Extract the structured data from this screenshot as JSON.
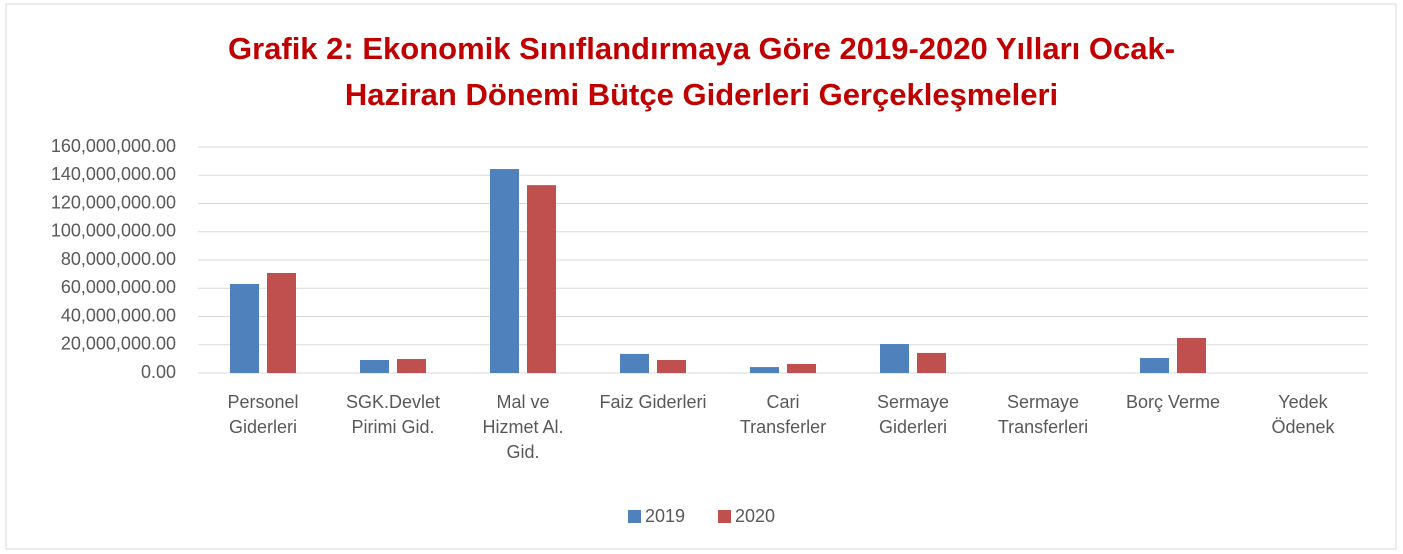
{
  "chart_data": {
    "type": "bar",
    "title": "Grafik 2: Ekonomik Sınıflandırmaya Göre 2019-2020 Yılları Ocak-\nHaziran Dönemi Bütçe Giderleri Gerçekleşmeleri",
    "categories": [
      "Personel\nGiderleri",
      "SGK.Devlet\nPirimi Gid.",
      "Mal ve\nHizmet Al.\nGid.",
      "Faiz Giderleri",
      "Cari\nTransferler",
      "Sermaye\nGiderleri",
      "Sermaye\nTransferleri",
      "Borç Verme",
      "Yedek\nÖdenek"
    ],
    "series": [
      {
        "name": "2019",
        "color": "#4f81bd",
        "values": [
          63000000,
          9200000,
          144400000,
          13500000,
          4200000,
          20500000,
          0,
          10600000,
          0
        ]
      },
      {
        "name": "2020",
        "color": "#c0504d",
        "values": [
          70800000,
          9900000,
          133000000,
          9200000,
          6400000,
          14200000,
          0,
          24800000,
          0
        ]
      }
    ],
    "ylim": [
      0,
      160000000
    ],
    "yticks": [
      {
        "value": 0,
        "label": "0.00"
      },
      {
        "value": 20000000,
        "label": "20,000,000.00"
      },
      {
        "value": 40000000,
        "label": "40,000,000.00"
      },
      {
        "value": 60000000,
        "label": "60,000,000.00"
      },
      {
        "value": 80000000,
        "label": "80,000,000.00"
      },
      {
        "value": 100000000,
        "label": "100,000,000.00"
      },
      {
        "value": 120000000,
        "label": "120,000,000.00"
      },
      {
        "value": 140000000,
        "label": "140,000,000.00"
      },
      {
        "value": 160000000,
        "label": "160,000,000.00"
      }
    ],
    "grid": true,
    "legend": "bottom"
  }
}
